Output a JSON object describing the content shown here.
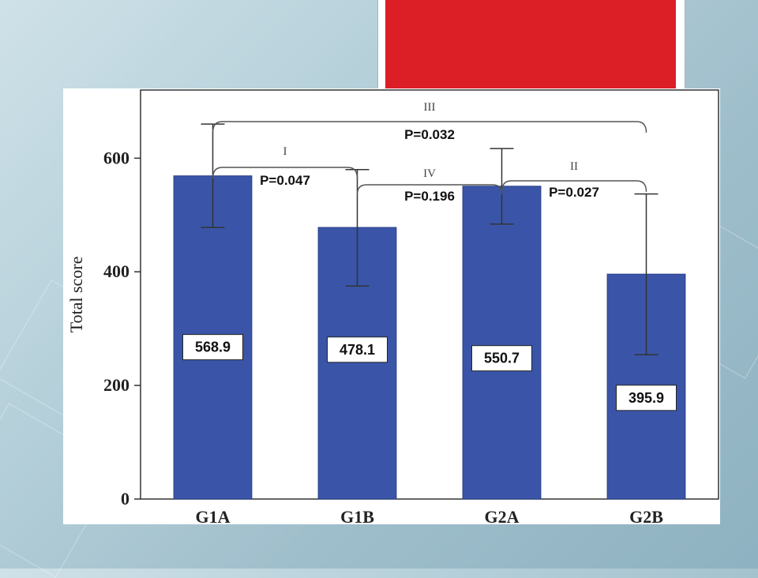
{
  "colors": {
    "bar": "#3a55a8",
    "bar_edge": "#2a3f86",
    "accent_red": "#dc1f27",
    "axis": "#333333",
    "error_bar": "#333333"
  },
  "chart_data": {
    "type": "bar",
    "ylabel": "Total score",
    "xlabel": "",
    "ylim": [
      0,
      720
    ],
    "yticks": [
      0,
      200,
      400,
      600
    ],
    "categories": [
      "G1A",
      "G1B",
      "G2A",
      "G2B"
    ],
    "values": [
      568.9,
      478.1,
      550.7,
      395.9
    ],
    "value_labels": [
      "568.9",
      "478.1",
      "550.7",
      "395.9"
    ],
    "error_lower": [
      478,
      375,
      484,
      254
    ],
    "error_upper": [
      660,
      580,
      617,
      537
    ],
    "comparisons": [
      {
        "id": "I",
        "label": "P=0.047",
        "from": "G1A",
        "to": "G1B"
      },
      {
        "id": "II",
        "label": "P=0.027",
        "from": "G2A",
        "to": "G2B"
      },
      {
        "id": "III",
        "label": "P=0.032",
        "from": "G1A",
        "to": "G2B"
      },
      {
        "id": "IV",
        "label": "P=0.196",
        "from": "G1B",
        "to": "G2A"
      }
    ]
  }
}
